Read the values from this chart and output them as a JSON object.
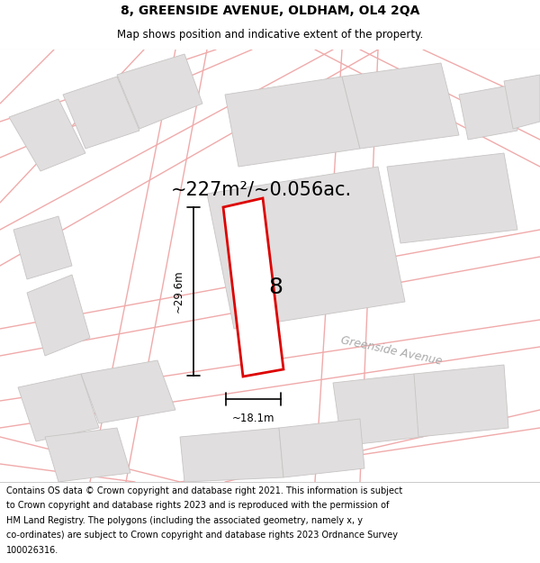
{
  "title_line1": "8, GREENSIDE AVENUE, OLDHAM, OL4 2QA",
  "title_line2": "Map shows position and indicative extent of the property.",
  "area_text": "~227m²/~0.056ac.",
  "property_number": "8",
  "street_label": "Greenside Avenue",
  "dim_height": "~29.6m",
  "dim_width": "~18.1m",
  "footer_lines": [
    "Contains OS data © Crown copyright and database right 2021. This information is subject",
    "to Crown copyright and database rights 2023 and is reproduced with the permission of",
    "HM Land Registry. The polygons (including the associated geometry, namely x, y",
    "co-ordinates) are subject to Crown copyright and database rights 2023 Ordnance Survey",
    "100026316."
  ],
  "map_bg": "#ffffff",
  "road_color": "#f0aaaa",
  "building_fill": "#e0dede",
  "building_edge": "#c8c4c4",
  "property_edge": "#dd0000",
  "property_fill": "#ffffff",
  "title_fontsize": 10,
  "subtitle_fontsize": 8.5,
  "area_fontsize": 15,
  "num_fontsize": 18,
  "street_fontsize": 9,
  "dim_fontsize": 8.5,
  "footer_fontsize": 7.0
}
